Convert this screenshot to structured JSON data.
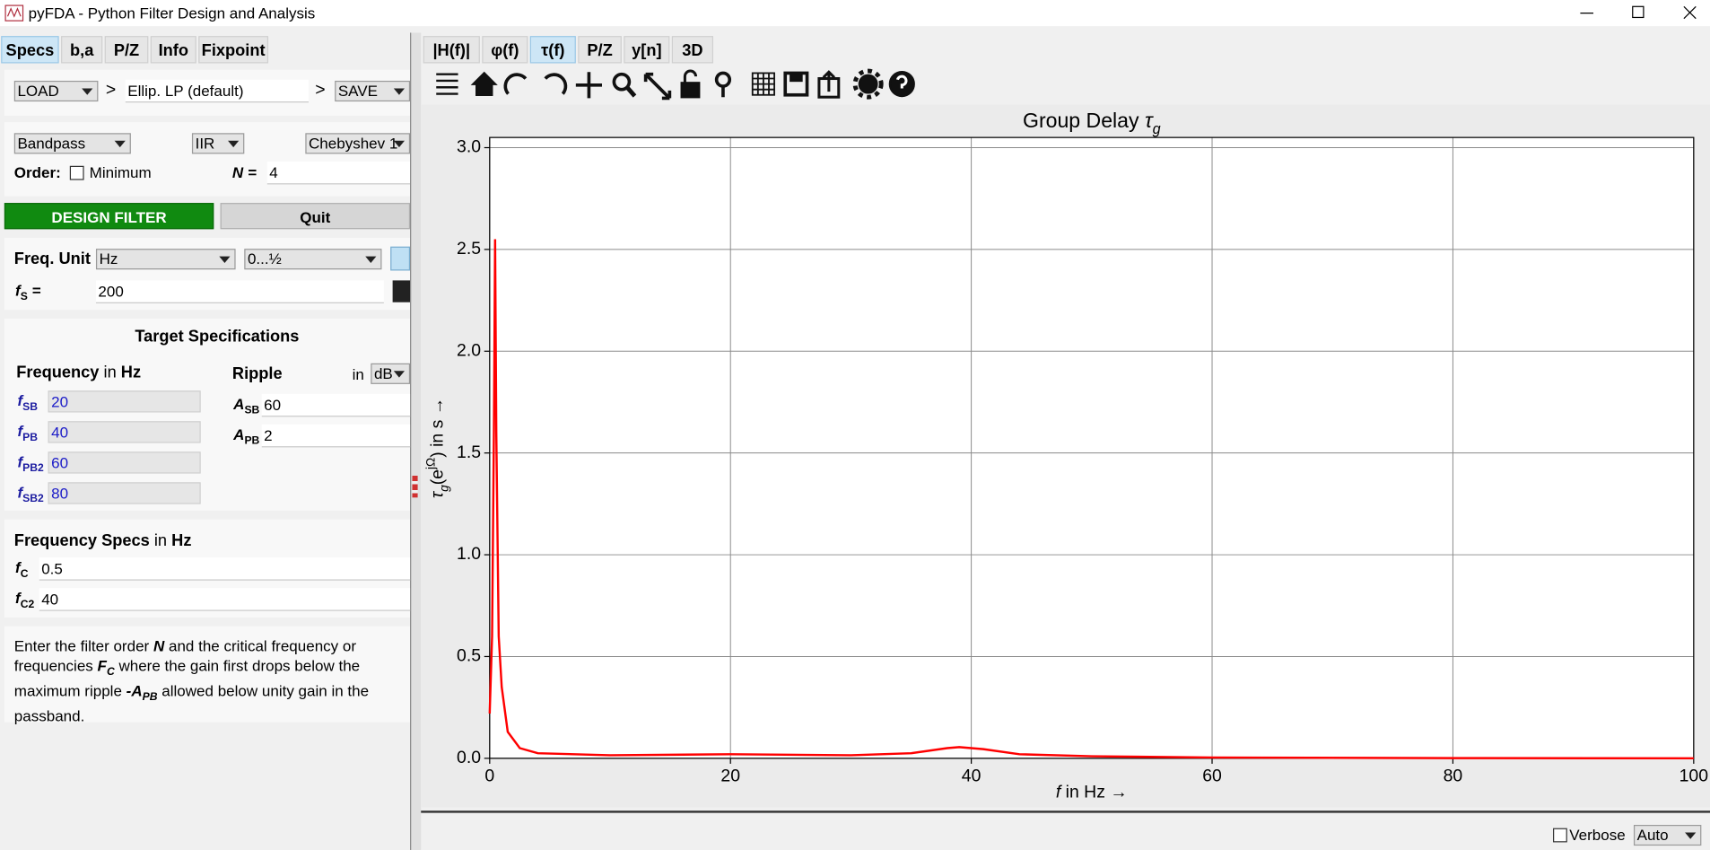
{
  "window": {
    "title": "pyFDA - Python Filter Design and Analysis"
  },
  "specs_panel": {
    "tabs": [
      "Specs",
      "b,a",
      "P/Z",
      "Info",
      "Fixpoint"
    ],
    "load": "LOAD",
    "separator": ">",
    "filter_name": "Ellip. LP (default)",
    "save": "SAVE",
    "response_type": "Bandpass",
    "filter_class": "IIR",
    "design_method": "Chebyshev 1",
    "order": {
      "label": "Order:",
      "minimum": "Minimum",
      "n_label": "N =",
      "n_value": "4"
    },
    "design_button": "DESIGN FILTER",
    "quit_button": "Quit",
    "freq_unit": {
      "label": "Freq. Unit",
      "unit": "Hz",
      "range": "0...½"
    },
    "fs": {
      "symbol": "f",
      "sub": "S",
      "eq": "=",
      "value": "200"
    },
    "target": {
      "title": "Target Specifications",
      "freq_label": "Frequency",
      "freq_in": "in",
      "freq_unit": "Hz",
      "ripple_label": "Ripple",
      "ripple_in": "in",
      "ripple_unit": "dB",
      "freqs": [
        {
          "symbol": "f",
          "sub": "SB",
          "value": "20"
        },
        {
          "symbol": "f",
          "sub": "PB",
          "value": "40"
        },
        {
          "symbol": "f",
          "sub": "PB2",
          "value": "60"
        },
        {
          "symbol": "f",
          "sub": "SB2",
          "value": "80"
        }
      ],
      "amps": [
        {
          "symbol": "A",
          "sub": "SB",
          "value": "60"
        },
        {
          "symbol": "A",
          "sub": "PB",
          "value": "2"
        }
      ]
    },
    "freq_specs": {
      "title": "Frequency Specs",
      "in": "in",
      "unit": "Hz",
      "rows": [
        {
          "symbol": "f",
          "sub": "C",
          "value": "0.5"
        },
        {
          "symbol": "f",
          "sub": "C2",
          "value": "40"
        }
      ]
    },
    "help": [
      {
        "text": "Enter the filter order "
      },
      {
        "text": "N",
        "style": "bi"
      },
      {
        "text": " and the critical frequency or frequencies "
      },
      {
        "text": "F",
        "style": "bi"
      },
      {
        "text": "C",
        "style": "sub"
      },
      {
        "text": " where the gain first drops below the maximum ripple "
      },
      {
        "text": "-A",
        "style": "bi"
      },
      {
        "text": "PB",
        "style": "sub"
      },
      {
        "text": " allowed below unity gain in the passband."
      }
    ]
  },
  "plot_tabs": [
    "|H(f)|",
    "φ(f)",
    "τ(f)",
    "P/Z",
    "y[n]",
    "3D"
  ],
  "chart_data": {
    "type": "line",
    "title": [
      {
        "text": "Group Delay "
      },
      {
        "text": "τ",
        "style": "i"
      },
      {
        "text": "g",
        "style": "sub"
      }
    ],
    "xlabel": [
      {
        "text": "f",
        "style": "i"
      },
      {
        "text": " in Hz →"
      }
    ],
    "ylabel": [
      {
        "text": "τ",
        "style": "i"
      },
      {
        "text": "g",
        "style": "sub"
      },
      {
        "text": "(e"
      },
      {
        "text": "jΩ",
        "style": "sup"
      },
      {
        "text": ") in s →"
      }
    ],
    "x": [
      0,
      0.2,
      0.35,
      0.45,
      0.55,
      0.75,
      1.0,
      1.5,
      2.5,
      4,
      10,
      20,
      30,
      35,
      38,
      39,
      41,
      44,
      50,
      60,
      80,
      100
    ],
    "values": [
      0.22,
      0.6,
      1.6,
      2.55,
      1.6,
      0.6,
      0.35,
      0.13,
      0.05,
      0.025,
      0.015,
      0.02,
      0.015,
      0.025,
      0.05,
      0.055,
      0.045,
      0.02,
      0.01,
      0.004,
      0.001,
      0.0
    ],
    "color": "#ff0000",
    "xlim": [
      0,
      100
    ],
    "xticks": [
      0,
      20,
      40,
      60,
      80,
      100
    ],
    "ylim": [
      0,
      3.05
    ],
    "yticks": [
      {
        "value": 0,
        "label": "0.0"
      },
      {
        "value": 0.5,
        "label": "0.5"
      },
      {
        "value": 1,
        "label": "1.0"
      },
      {
        "value": 1.5,
        "label": "1.5"
      },
      {
        "value": 2,
        "label": "2.0"
      },
      {
        "value": 2.5,
        "label": "2.5"
      },
      {
        "value": 3,
        "label": "3.0"
      }
    ],
    "grid": true
  },
  "footer": {
    "verbose": "Verbose",
    "auto": "Auto"
  }
}
